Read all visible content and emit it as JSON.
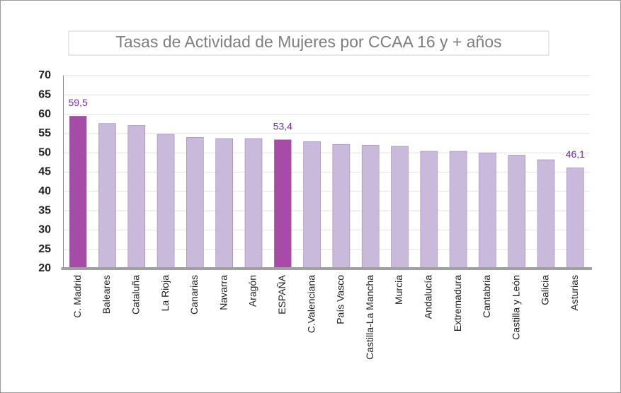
{
  "chart_data": {
    "type": "bar",
    "title": "Tasas de Actividad de Mujeres por CCAA 16 y + años",
    "categories": [
      "C. Madrid",
      "Baleares",
      "Cataluña",
      "La Rioja",
      "Canarias",
      "Navarra",
      "Aragón",
      "ESPAÑA",
      "C.Valenciana",
      "País Vasco",
      "Castilla-La Mancha",
      "Murcia",
      "Andalucía",
      "Extremadura",
      "Cantabria",
      "Castilla y León",
      "Galicia",
      "Asturias"
    ],
    "values": [
      59.5,
      57.6,
      57.1,
      54.8,
      54.0,
      53.7,
      53.7,
      53.4,
      52.9,
      52.2,
      52.0,
      51.7,
      50.4,
      50.4,
      50.0,
      49.4,
      48.2,
      46.1
    ],
    "value_labels": [
      "59,5",
      null,
      null,
      null,
      null,
      null,
      null,
      "53,4",
      null,
      null,
      null,
      null,
      null,
      null,
      null,
      null,
      null,
      "46,1"
    ],
    "colors": [
      "#a64ca6",
      "#c9b9da",
      "#c9b9da",
      "#c9b9da",
      "#c9b9da",
      "#c9b9da",
      "#c9b9da",
      "#a64ca6",
      "#c9b9da",
      "#c9b9da",
      "#c9b9da",
      "#c9b9da",
      "#c9b9da",
      "#c9b9da",
      "#c9b9da",
      "#c9b9da",
      "#c9b9da",
      "#c9b9da"
    ],
    "ylim": [
      20,
      70
    ],
    "yticks": [
      20,
      25,
      30,
      35,
      40,
      45,
      50,
      55,
      60,
      65,
      70
    ],
    "grid": true
  }
}
